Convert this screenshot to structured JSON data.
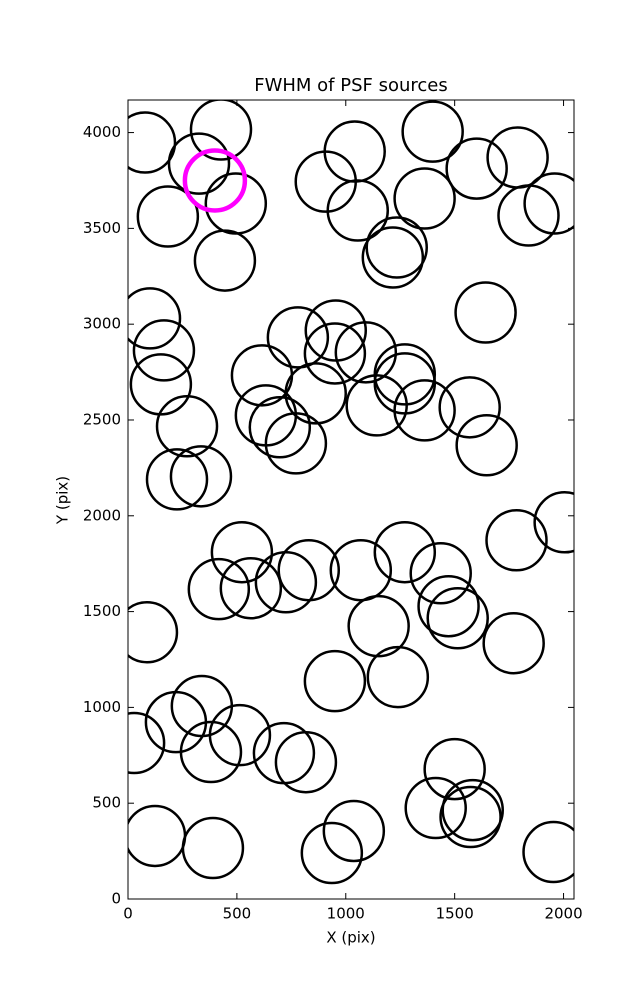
{
  "chart_data": {
    "type": "scatter",
    "title": "FWHM of PSF sources",
    "x_label": "X (pix)",
    "y_label": "Y (pix)",
    "xlim": [
      0,
      2048
    ],
    "ylim": [
      0,
      4170
    ],
    "xticks": [
      0,
      500,
      1000,
      1500,
      2000
    ],
    "yticks": [
      0,
      500,
      1000,
      1500,
      2000,
      2500,
      3000,
      3500,
      4000
    ],
    "grid": false,
    "series": [
      {
        "color": "#000000",
        "marker": "open-circle",
        "x": [
          78,
          427,
          326,
          495,
          183,
          445,
          908,
          1041,
          1055,
          1399,
          1362,
          1234,
          1216,
          1601,
          1789,
          1839,
          1959,
          101,
          165,
          151,
          1642,
          780,
          954,
          950,
          1092,
          615,
          862,
          633,
          697,
          771,
          271,
          1271,
          1271,
          1142,
          1362,
          1569,
          1647,
          225,
          335,
          2005,
          1784,
          523,
          417,
          564,
          725,
          830,
          1069,
          1271,
          1436,
          1472,
          1514,
          1771,
          1151,
          87,
          950,
          1239,
          339,
          220,
          381,
          514,
          28,
          716,
          817,
          1500,
          1413,
          1583,
          1573,
          124,
          390,
          1037,
          936,
          1954
        ],
        "y": [
          3948,
          4016,
          3838,
          3630,
          3562,
          3332,
          3744,
          3901,
          3593,
          4005,
          3656,
          3400,
          3348,
          3812,
          3870,
          3567,
          3630,
          3030,
          2863,
          2686,
          3061,
          2931,
          2967,
          2847,
          2853,
          2733,
          2639,
          2524,
          2462,
          2378,
          2467,
          2738,
          2691,
          2576,
          2550,
          2566,
          2368,
          2190,
          2206,
          1966,
          1872,
          1810,
          1617,
          1622,
          1653,
          1716,
          1716,
          1810,
          1700,
          1528,
          1465,
          1335,
          1424,
          1392,
          1137,
          1158,
          1007,
          923,
          767,
          855,
          814,
          761,
          714,
          678,
          475,
          464,
          428,
          329,
          266,
          355,
          240,
          245
        ]
      },
      {
        "color": "#ff00ff",
        "marker": "open-circle",
        "x": [
          399
        ],
        "y": [
          3750
        ]
      }
    ]
  }
}
